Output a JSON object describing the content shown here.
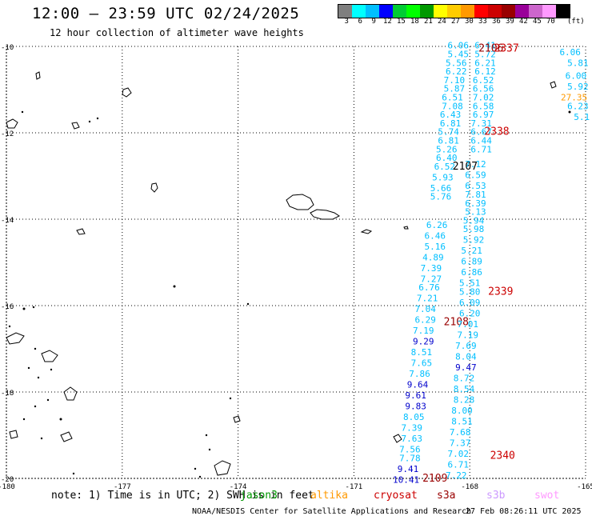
{
  "header": {
    "title": "12:00 – 23:59 UTC 02/24/2025",
    "subtitle": "12 hour collection of altimeter wave heights"
  },
  "scale": {
    "unit": "(ft)",
    "colors": [
      "#7f7f7f",
      "#00ffff",
      "#00bfff",
      "#0000ff",
      "#00cc33",
      "#00ff00",
      "#009900",
      "#ffff00",
      "#ffcc00",
      "#ff9900",
      "#ff0000",
      "#cc0000",
      "#990000",
      "#990099",
      "#cc66cc",
      "#ff99ff",
      "#000000"
    ],
    "labels": [
      "3",
      "6",
      "9",
      "12",
      "15",
      "18",
      "21",
      "24",
      "27",
      "30",
      "33",
      "36",
      "39",
      "42",
      "45",
      "70"
    ]
  },
  "axes": {
    "lat_labels": [
      {
        "text": "-10",
        "lat": -10
      },
      {
        "text": "-12",
        "lat": -12
      },
      {
        "text": "-14",
        "lat": -14
      },
      {
        "text": "-16",
        "lat": -16
      },
      {
        "text": "-18",
        "lat": -18
      },
      {
        "text": "-20",
        "lat": -20
      }
    ],
    "lon_labels": [
      {
        "text": "-180",
        "lon": -180
      },
      {
        "text": "-177",
        "lon": -177
      },
      {
        "text": "-174",
        "lon": -174
      },
      {
        "text": "-171",
        "lon": -171
      },
      {
        "text": "-168",
        "lon": -168
      },
      {
        "text": "-165",
        "lon": -165
      }
    ]
  },
  "tracks": [
    {
      "time": "2338",
      "time_lat": -12.05,
      "time_lon": -167.3,
      "time_color": "#cc0000",
      "points": [
        {
          "v": "6.41",
          "lat": -10.05,
          "lon": -167.6
        },
        {
          "v": "5.72",
          "lat": -10.25,
          "lon": -167.6
        },
        {
          "v": "6.21",
          "lat": -10.45,
          "lon": -167.6
        },
        {
          "v": "6.12",
          "lat": -10.65,
          "lon": -167.6
        },
        {
          "v": "6.52",
          "lat": -10.85,
          "lon": -167.65
        },
        {
          "v": "6.56",
          "lat": -11.05,
          "lon": -167.65
        },
        {
          "v": "7.02",
          "lat": -11.25,
          "lon": -167.65
        },
        {
          "v": "6.58",
          "lat": -11.45,
          "lon": -167.65
        },
        {
          "v": "6.97",
          "lat": -11.65,
          "lon": -167.65
        },
        {
          "v": "7.31",
          "lat": -11.85,
          "lon": -167.7
        },
        {
          "v": "6.67",
          "lat": -12.05,
          "lon": -167.7
        },
        {
          "v": "6.44",
          "lat": -12.25,
          "lon": -167.7
        },
        {
          "v": "6.71",
          "lat": -12.45,
          "lon": -167.7
        }
      ]
    },
    {
      "time": "2107",
      "time_lat": -12.85,
      "time_lon": -168.12,
      "time_color": "#000000",
      "points": [
        {
          "v": "6.06",
          "lat": -10.05,
          "lon": -168.3
        },
        {
          "v": "5.45",
          "lat": -10.25,
          "lon": -168.3
        },
        {
          "v": "5.56",
          "lat": -10.45,
          "lon": -168.35
        },
        {
          "v": "6.22",
          "lat": -10.65,
          "lon": -168.35
        },
        {
          "v": "7.10",
          "lat": -10.85,
          "lon": -168.4
        },
        {
          "v": "5.87",
          "lat": -11.05,
          "lon": -168.4
        },
        {
          "v": "6.51",
          "lat": -11.25,
          "lon": -168.45
        },
        {
          "v": "7.08",
          "lat": -11.45,
          "lon": -168.45
        },
        {
          "v": "6.43",
          "lat": -11.65,
          "lon": -168.5
        },
        {
          "v": "6.81",
          "lat": -11.85,
          "lon": -168.5
        },
        {
          "v": "5.74",
          "lat": -12.05,
          "lon": -168.55
        },
        {
          "v": "6.81",
          "lat": -12.25,
          "lon": -168.55
        },
        {
          "v": "5.26",
          "lat": -12.45,
          "lon": -168.6
        },
        {
          "v": "6.40",
          "lat": -12.65,
          "lon": -168.6
        },
        {
          "v": "6.52",
          "lat": -12.85,
          "lon": -168.65
        },
        {
          "v": "5.93",
          "lat": -13.1,
          "lon": -168.7
        },
        {
          "v": "5.66",
          "lat": -13.35,
          "lon": -168.75
        },
        {
          "v": "5.76",
          "lat": -13.55,
          "lon": -168.75
        }
      ]
    },
    {
      "time": "2339",
      "time_lat": -15.75,
      "time_lon": -167.2,
      "time_color": "#cc0000",
      "points": [
        {
          "v": "7.12",
          "lat": -12.8,
          "lon": -167.85
        },
        {
          "v": "6.59",
          "lat": -13.05,
          "lon": -167.85
        },
        {
          "v": "6.53",
          "lat": -13.3,
          "lon": -167.85
        },
        {
          "v": "7.81",
          "lat": -13.5,
          "lon": -167.85
        },
        {
          "v": "6.39",
          "lat": -13.7,
          "lon": -167.85
        },
        {
          "v": "5.13",
          "lat": -13.9,
          "lon": -167.85
        },
        {
          "v": "5.94",
          "lat": -14.1,
          "lon": -167.9
        },
        {
          "v": "5.98",
          "lat": -14.3,
          "lon": -167.9
        },
        {
          "v": "5.92",
          "lat": -14.55,
          "lon": -167.9
        },
        {
          "v": "5.21",
          "lat": -14.8,
          "lon": -167.95
        },
        {
          "v": "6.89",
          "lat": -15.05,
          "lon": -167.95
        },
        {
          "v": "6.86",
          "lat": -15.3,
          "lon": -167.95
        },
        {
          "v": "5.51",
          "lat": -15.55,
          "lon": -168.0
        },
        {
          "v": "5.80",
          "lat": -15.75,
          "lon": -168.0
        }
      ]
    },
    {
      "time": "2108",
      "time_lat": -16.45,
      "time_lon": -168.35,
      "time_color": "#990000",
      "points": [
        {
          "v": "6.26",
          "lat": -14.2,
          "lon": -168.85
        },
        {
          "v": "6.46",
          "lat": -14.45,
          "lon": -168.9
        },
        {
          "v": "5.16",
          "lat": -14.7,
          "lon": -168.9
        },
        {
          "v": "4.89",
          "lat": -14.95,
          "lon": -168.95
        },
        {
          "v": "7.39",
          "lat": -15.2,
          "lon": -169.0
        },
        {
          "v": "7.27",
          "lat": -15.45,
          "lon": -169.0
        },
        {
          "v": "6.76",
          "lat": -15.65,
          "lon": -169.05
        },
        {
          "v": "7.21",
          "lat": -15.9,
          "lon": -169.1
        },
        {
          "v": "7.04",
          "lat": -16.15,
          "lon": -169.15
        },
        {
          "v": "6.29",
          "lat": -16.4,
          "lon": -169.15
        },
        {
          "v": "7.19",
          "lat": -16.65,
          "lon": -169.2
        },
        {
          "v": "9.29",
          "lat": -16.9,
          "lon": -169.2
        },
        {
          "v": "8.51",
          "lat": -17.15,
          "lon": -169.25
        },
        {
          "v": "7.65",
          "lat": -17.4,
          "lon": -169.25
        },
        {
          "v": "7.86",
          "lat": -17.65,
          "lon": -169.3
        },
        {
          "v": "9.64",
          "lat": -17.9,
          "lon": -169.35
        },
        {
          "v": "9.61",
          "lat": -18.15,
          "lon": -169.4
        },
        {
          "v": "9.83",
          "lat": -18.4,
          "lon": -169.4
        },
        {
          "v": "8.05",
          "lat": -18.65,
          "lon": -169.45
        },
        {
          "v": "7.39",
          "lat": -18.9,
          "lon": -169.5
        },
        {
          "v": "7.63",
          "lat": -19.15,
          "lon": -169.5
        },
        {
          "v": "7.56",
          "lat": -19.4,
          "lon": -169.55
        },
        {
          "v": "7.78",
          "lat": -19.6,
          "lon": -169.55
        },
        {
          "v": "9.41",
          "lat": -19.85,
          "lon": -169.6
        },
        {
          "v": "10.41",
          "lat": -20.1,
          "lon": -169.65
        }
      ]
    },
    {
      "time": "2340",
      "time_lat": -19.55,
      "time_lon": -167.15,
      "time_color": "#cc0000",
      "points": [
        {
          "v": "6.09",
          "lat": -16.0,
          "lon": -168.0
        },
        {
          "v": "6.20",
          "lat": -16.25,
          "lon": -168.0
        },
        {
          "v": "7.01",
          "lat": -16.5,
          "lon": -168.05
        },
        {
          "v": "7.19",
          "lat": -16.75,
          "lon": -168.05
        },
        {
          "v": "7.69",
          "lat": -17.0,
          "lon": -168.1
        },
        {
          "v": "8.04",
          "lat": -17.25,
          "lon": -168.1
        },
        {
          "v": "9.47",
          "lat": -17.5,
          "lon": -168.1
        },
        {
          "v": "8.72",
          "lat": -17.75,
          "lon": -168.15
        },
        {
          "v": "8.54",
          "lat": -18.0,
          "lon": -168.15
        },
        {
          "v": "8.28",
          "lat": -18.25,
          "lon": -168.15
        },
        {
          "v": "8.00",
          "lat": -18.5,
          "lon": -168.2
        },
        {
          "v": "8.51",
          "lat": -18.75,
          "lon": -168.2
        },
        {
          "v": "7.68",
          "lat": -19.0,
          "lon": -168.25
        },
        {
          "v": "7.37",
          "lat": -19.25,
          "lon": -168.25
        },
        {
          "v": "7.02",
          "lat": -19.5,
          "lon": -168.3
        },
        {
          "v": "6.71",
          "lat": -19.75,
          "lon": -168.3
        },
        {
          "v": "7.22",
          "lat": -20.0,
          "lon": -168.35
        }
      ]
    },
    {
      "time": "",
      "time_lat": -10.05,
      "time_lon": -164.5,
      "time_color": "#cc0000",
      "points": [
        {
          "v": "6.06",
          "lat": -10.2,
          "lon": -165.4
        },
        {
          "v": "5.81",
          "lat": -10.45,
          "lon": -165.2
        },
        {
          "v": "6.00",
          "lat": -10.75,
          "lon": -165.25
        },
        {
          "v": "5.92",
          "lat": -11.0,
          "lon": -165.2
        },
        {
          "v": "27.35",
          "lat": -11.25,
          "lon": -165.3
        },
        {
          "v": "6.23",
          "lat": -11.45,
          "lon": -165.2
        },
        {
          "v": "5.1",
          "lat": -11.7,
          "lon": -165.1
        }
      ]
    }
  ],
  "time_labels_extra": [
    {
      "text": "2106",
      "lat": -10.05,
      "lon": -167.45,
      "color": "#990000"
    },
    {
      "text": "2337",
      "lat": -10.05,
      "lon": -167.05,
      "color": "#cc0000"
    },
    {
      "text": "2109",
      "lat": -20.0,
      "lon": -168.9,
      "color": "#990000"
    }
  ],
  "footer": {
    "note": "note: 1) Time is in UTC; 2) SWH is in feet",
    "satellites": [
      {
        "name": "jason3",
        "color": "#009900"
      },
      {
        "name": "altika",
        "color": "#ff9900"
      },
      {
        "name": "cryosat",
        "color": "#cc0000"
      },
      {
        "name": "s3a",
        "color": "#990000"
      },
      {
        "name": "s3b",
        "color": "#cc99ff"
      },
      {
        "name": "swot",
        "color": "#ff99ff"
      }
    ],
    "credit": "NOAA/NESDIS Center for Satellite Applications and Research",
    "timestamp": "27 Feb 08:26:11 UTC 2025"
  }
}
